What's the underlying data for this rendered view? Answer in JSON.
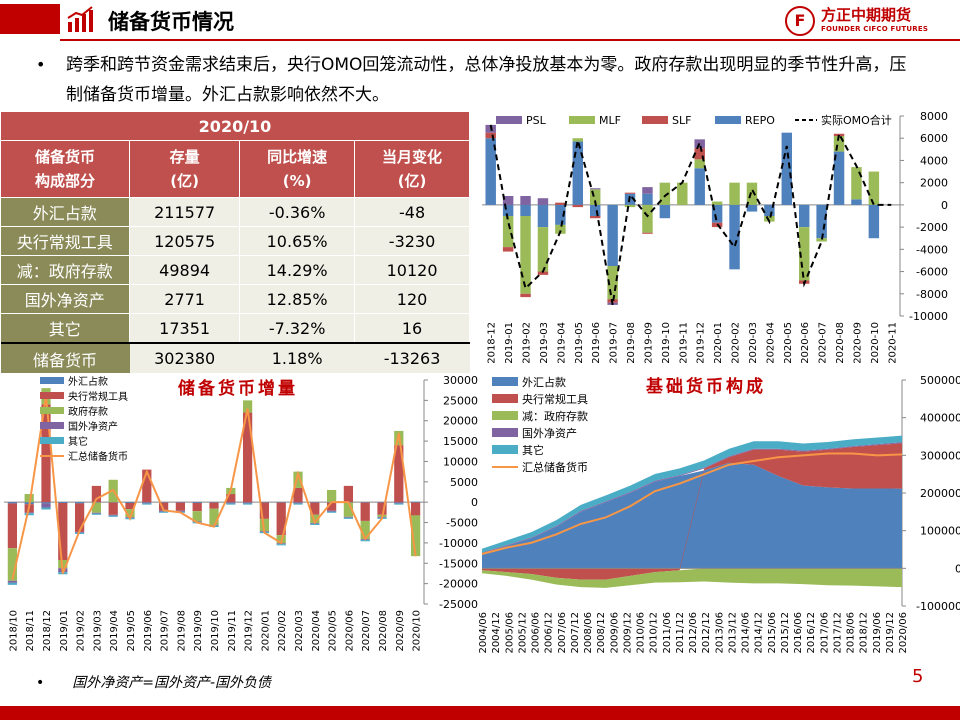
{
  "header": {
    "title": "储备货币情况",
    "logo_cn": "方正中期期货",
    "logo_en": "FOUNDER CIFCO FUTURES",
    "logo_mark": "F",
    "brand_color": "#c00000"
  },
  "bullet": "跨季和跨节资金需求结束后，央行OMO回笼流动性，总体净投放基本为零。政府存款出现明显的季节性升高，压制储备货币增量。外汇占款影响依然不大。",
  "table": {
    "period": "2020/10",
    "headers": [
      {
        "l1": "储备货币",
        "l2": "构成部分"
      },
      {
        "l1": "存量",
        "l2": "(亿)"
      },
      {
        "l1": "同比增速",
        "l2": "(%)"
      },
      {
        "l1": "当月变化",
        "l2": "(亿)"
      }
    ],
    "rows": [
      {
        "name": "外汇占款",
        "stock": "211577",
        "yoy": "-0.36%",
        "change": "-48"
      },
      {
        "name": "央行常规工具",
        "stock": "120575",
        "yoy": "10.65%",
        "change": "-3230"
      },
      {
        "name": "减：政府存款",
        "stock": "49894",
        "yoy": "14.29%",
        "change": "10120"
      },
      {
        "name": "国外净资产",
        "stock": "2771",
        "yoy": "12.85%",
        "change": "120"
      },
      {
        "name": "其它",
        "stock": "17351",
        "yoy": "-7.32%",
        "change": "16"
      }
    ],
    "total": {
      "name": "储备货币",
      "stock": "302380",
      "yoy": "1.18%",
      "change": "-13263"
    }
  },
  "footnote": "国外净资产=国外资产-国外负债",
  "page_number": "5",
  "chart_data": [
    {
      "id": "omo",
      "type": "bar",
      "stacked": true,
      "legend": [
        "PSL",
        "MLF",
        "SLF",
        "REPO",
        "实际OMO合计"
      ],
      "colors": {
        "PSL": "#8064a2",
        "MLF": "#9bbb59",
        "SLF": "#c0504d",
        "REPO": "#4f81bd",
        "line": "#000000"
      },
      "ylim": [
        -10000,
        8000
      ],
      "yticks": [
        -10000,
        -8000,
        -6000,
        -4000,
        -2000,
        0,
        2000,
        4000,
        6000,
        8000
      ],
      "categories": [
        "2018-12",
        "2019-01",
        "2019-02",
        "2019-03",
        "2019-04",
        "2019-05",
        "2019-06",
        "2019-07",
        "2019-08",
        "2019-09",
        "2019-10",
        "2019-11",
        "2019-12",
        "2020-01",
        "2020-02",
        "2020-03",
        "2020-04",
        "2020-05",
        "2020-06",
        "2020-07",
        "2020-08",
        "2020-09",
        "2020-10",
        "2020-11"
      ],
      "x": [
        "2018-12",
        "2019-01",
        "2019-02",
        "2019-03",
        "2019-04",
        "2019-05",
        "2019-06",
        "2019-07",
        "2019-08",
        "2019-09",
        "2019-10",
        "2019-11",
        "2019-12",
        "2020-01",
        "2020-02",
        "2020-03",
        "2020-04",
        "2020-05",
        "2020-06",
        "2020-07",
        "2020-08",
        "2020-09",
        "2020-10",
        "2020-11"
      ],
      "series": [
        {
          "name": "REPO",
          "values": [
            6000,
            -1000,
            -1000,
            -2000,
            -1800,
            5700,
            -1000,
            -5500,
            1000,
            1000,
            -1200,
            0,
            3300,
            -1600,
            -5800,
            -600,
            -1000,
            6500,
            -2000,
            -3000,
            4800,
            500,
            -3000,
            0
          ]
        },
        {
          "name": "MLF",
          "values": [
            0,
            -2800,
            -7000,
            -4000,
            -800,
            300,
            1400,
            -3000,
            -200,
            -2500,
            2000,
            2000,
            800,
            300,
            2000,
            2000,
            -500,
            0,
            -4800,
            -300,
            1400,
            2900,
            3000,
            0
          ]
        },
        {
          "name": "SLF",
          "values": [
            500,
            -400,
            -300,
            -300,
            200,
            -200,
            -200,
            -300,
            100,
            -100,
            0,
            0,
            1000,
            -400,
            0,
            0,
            0,
            0,
            -300,
            0,
            200,
            0,
            0,
            0
          ]
        },
        {
          "name": "PSL",
          "values": [
            700,
            800,
            800,
            600,
            0,
            0,
            100,
            -200,
            0,
            600,
            0,
            0,
            800,
            0,
            0,
            0,
            0,
            0,
            0,
            0,
            0,
            0,
            0,
            0
          ]
        }
      ],
      "line": {
        "name": "实际OMO合计",
        "values": [
          7200,
          -1500,
          -7500,
          -6000,
          -2400,
          5800,
          300,
          -9000,
          900,
          -1000,
          800,
          2000,
          5600,
          -1700,
          -3800,
          1400,
          -1500,
          5300,
          -7100,
          -3300,
          6400,
          3500,
          0,
          0
        ]
      }
    },
    {
      "id": "reserve_increment",
      "type": "bar",
      "stacked": true,
      "title": "储备货币增量",
      "legend": [
        "外汇占款",
        "央行常规工具",
        "政府存款",
        "国外净资产",
        "其它",
        "汇总储备货币"
      ],
      "colors": {
        "外汇占款": "#4f81bd",
        "央行常规工具": "#c0504d",
        "政府存款": "#9bbb59",
        "国外净资产": "#8064a2",
        "其它": "#4bacc6",
        "line": "#f79646"
      },
      "ylim": [
        -25000,
        30000
      ],
      "yticks": [
        -25000,
        -20000,
        -15000,
        -10000,
        -5000,
        0,
        5000,
        10000,
        15000,
        20000,
        25000,
        30000
      ],
      "categories": [
        "2018/10",
        "2018/11",
        "2018/12",
        "2019/01",
        "2019/02",
        "2019/03",
        "2019/04",
        "2019/05",
        "2019/06",
        "2019/07",
        "2019/08",
        "2019/09",
        "2019/10",
        "2019/11",
        "2019/12",
        "2020/01",
        "2020/02",
        "2020/03",
        "2020/04",
        "2020/05",
        "2020/06",
        "2020/07",
        "2020/08",
        "2020/09",
        "2020/10"
      ],
      "x_tick_labels": [
        "2018/10",
        "2018/11",
        "2018/12",
        "2019/01",
        "2019/02",
        "2019/03",
        "2019/04",
        "2019/05",
        "2019/06",
        "2019/07",
        "2019/08",
        "2019/09",
        "2019/10",
        "2019/11",
        "2019/12",
        "2020/01",
        "2020/02",
        "2020/03",
        "2020/04",
        "2020/05",
        "2020/06",
        "2020/07",
        "2020/08",
        "2020/09",
        "2020/10"
      ],
      "series": [
        {
          "name": "外汇占款",
          "values": [
            -300,
            -500,
            -300,
            -200,
            -300,
            -100,
            -100,
            -200,
            -100,
            -100,
            -100,
            -200,
            -100,
            -100,
            -100,
            -100,
            -100,
            -100,
            -100,
            -100,
            -100,
            -100,
            -100,
            -100,
            -50
          ]
        },
        {
          "name": "央行常规工具",
          "values": [
            -11000,
            -2000,
            24000,
            -14000,
            -7000,
            4000,
            -3000,
            -1500,
            8000,
            -2000,
            -2000,
            -2000,
            -1500,
            2000,
            22000,
            -4000,
            -8000,
            3500,
            -3000,
            -2000,
            4000,
            -4500,
            -3000,
            14000,
            -3200
          ]
        },
        {
          "name": "政府存款",
          "values": [
            -8000,
            2000,
            4000,
            -2000,
            0,
            -2500,
            5500,
            -2000,
            0,
            0,
            0,
            -2500,
            -4000,
            1500,
            3000,
            -3000,
            -2000,
            4000,
            -2000,
            3000,
            -3500,
            -4500,
            -500,
            3500,
            -10000
          ]
        },
        {
          "name": "国外净资产",
          "values": [
            -500,
            -200,
            -1000,
            -1000,
            -200,
            -200,
            -200,
            -200,
            -200,
            -200,
            -200,
            -200,
            -200,
            -200,
            -200,
            -200,
            -200,
            -200,
            -200,
            -200,
            -200,
            -200,
            -200,
            -200,
            120
          ]
        },
        {
          "name": "其它",
          "values": [
            -500,
            -500,
            -500,
            -500,
            -300,
            -300,
            -300,
            -300,
            -300,
            -300,
            -300,
            -300,
            -300,
            -300,
            -300,
            -300,
            -300,
            -300,
            -300,
            -300,
            -300,
            -300,
            -300,
            -300,
            16
          ]
        }
      ],
      "line": {
        "name": "汇总储备货币",
        "values": [
          -19000,
          -1000,
          26000,
          -17500,
          -7000,
          800,
          3000,
          -4000,
          7500,
          -2000,
          -2500,
          -5000,
          -6000,
          3000,
          23000,
          -7500,
          -10000,
          7000,
          -5000,
          0,
          0,
          -9000,
          -4000,
          17000,
          -13263
        ]
      }
    },
    {
      "id": "base_money",
      "type": "area",
      "stacked": true,
      "title": "基础货币构成",
      "legend": [
        "外汇占款",
        "央行常规工具",
        "减：政府存款",
        "国外净资产",
        "其它",
        "汇总储备货币"
      ],
      "colors": {
        "外汇占款": "#4f81bd",
        "央行常规工具": "#c0504d",
        "减：政府存款": "#9bbb59",
        "国外净资产": "#8064a2",
        "其它": "#4bacc6",
        "line": "#f79646"
      },
      "ylim": [
        -100000,
        500000
      ],
      "yticks": [
        -100000,
        0,
        100000,
        200000,
        300000,
        400000,
        500000
      ],
      "x_tick_labels": [
        "2004/06",
        "2004/12",
        "2005/06",
        "2005/12",
        "2006/06",
        "2006/12",
        "2007/06",
        "2007/12",
        "2008/06",
        "2008/12",
        "2009/06",
        "2009/12",
        "2010/06",
        "2010/12",
        "2011/06",
        "2011/12",
        "2012/06",
        "2012/12",
        "2013/06",
        "2013/12",
        "2014/06",
        "2014/12",
        "2015/06",
        "2015/12",
        "2016/06",
        "2016/12",
        "2017/06",
        "2017/12",
        "2018/06",
        "2018/12",
        "2019/06",
        "2019/12",
        "2020/06"
      ],
      "x": [
        "2004/06",
        "2005/06",
        "2006/06",
        "2007/06",
        "2008/06",
        "2009/06",
        "2010/06",
        "2011/06",
        "2012/06",
        "2013/06",
        "2014/06",
        "2015/06",
        "2016/06",
        "2017/06",
        "2018/06",
        "2019/06",
        "2020/06",
        "2020/10"
      ],
      "series": [
        {
          "name": "外汇占款",
          "values": [
            40000,
            60000,
            80000,
            110000,
            150000,
            175000,
            200000,
            230000,
            245000,
            260000,
            280000,
            275000,
            245000,
            220000,
            215000,
            212000,
            212000,
            211577
          ]
        },
        {
          "name": "央行常规工具",
          "values": [
            -5000,
            -10000,
            -15000,
            -25000,
            -30000,
            -30000,
            -20000,
            -10000,
            -5000,
            5000,
            15000,
            40000,
            70000,
            90000,
            100000,
            110000,
            115000,
            120575
          ]
        },
        {
          "name": "减：政府存款",
          "values": [
            -8000,
            -10000,
            -15000,
            -18000,
            -20000,
            -22000,
            -25000,
            -28000,
            -32000,
            -35000,
            -38000,
            -40000,
            -40000,
            -42000,
            -45000,
            -46000,
            -48000,
            -49894
          ]
        },
        {
          "name": "国外净资产",
          "values": [
            2000,
            2000,
            2000,
            2500,
            2500,
            2500,
            2500,
            2500,
            2500,
            2500,
            2500,
            2500,
            2500,
            2500,
            2500,
            2500,
            2700,
            2771
          ]
        },
        {
          "name": "其它",
          "values": [
            10000,
            12000,
            14000,
            15000,
            16000,
            16000,
            17000,
            18000,
            18000,
            19000,
            20000,
            20000,
            20000,
            19000,
            18000,
            18000,
            17500,
            17351
          ]
        }
      ],
      "line": {
        "name": "汇总储备货币",
        "values": [
          38000,
          55000,
          68000,
          90000,
          118000,
          135000,
          165000,
          205000,
          225000,
          250000,
          275000,
          285000,
          295000,
          300000,
          305000,
          305000,
          300000,
          302380
        ]
      }
    }
  ]
}
